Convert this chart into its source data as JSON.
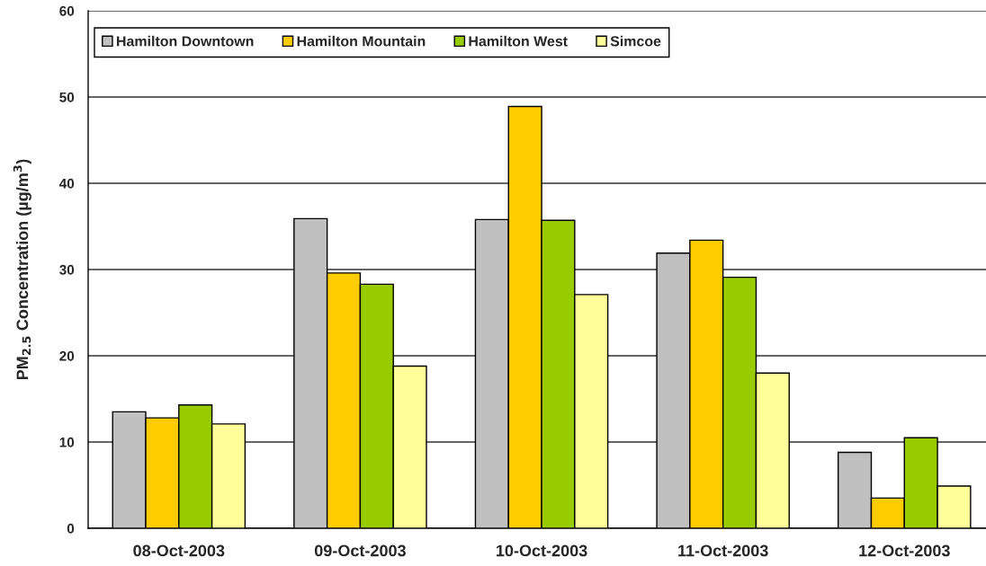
{
  "chart_data": {
    "type": "bar",
    "ylabel": "PM$_{2.5}$ Concentration (µg/m$^{3}$)",
    "categories": [
      "08-Oct-2003",
      "09-Oct-2003",
      "10-Oct-2003",
      "11-Oct-2003",
      "12-Oct-2003"
    ],
    "series": [
      {
        "name": "Hamilton Downtown",
        "color": "#c0c0c0",
        "values": [
          13.5,
          35.9,
          35.8,
          31.9,
          8.8
        ]
      },
      {
        "name": "Hamilton Mountain",
        "color": "#ffcc00",
        "values": [
          12.8,
          29.6,
          48.9,
          33.4,
          3.5
        ]
      },
      {
        "name": "Hamilton West",
        "color": "#99cc00",
        "values": [
          14.3,
          28.3,
          35.7,
          29.1,
          10.5
        ]
      },
      {
        "name": "Simcoe",
        "color": "#ffff99",
        "values": [
          12.1,
          18.8,
          27.1,
          18.0,
          4.9
        ]
      }
    ],
    "ylim": [
      0,
      60
    ],
    "yticks": [
      0,
      10,
      20,
      30,
      40,
      50,
      60
    ],
    "grid": "y",
    "legend": "top left"
  }
}
